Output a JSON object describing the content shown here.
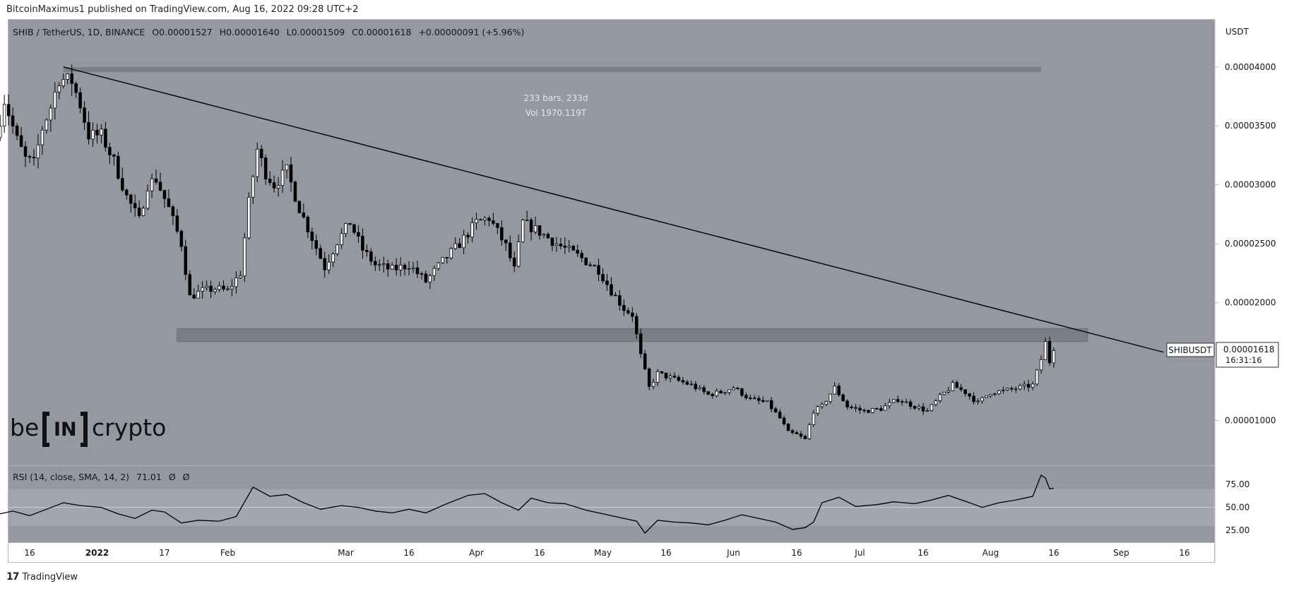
{
  "header": {
    "published_by": "BitcoinMaximus1 published on TradingView.com, Aug 16, 2022 09:28 UTC+2"
  },
  "legend": {
    "symbol": "SHIB / TetherUS, 1D, BINANCE",
    "o_label": "O",
    "o_value": "0.00001527",
    "h_label": "H",
    "h_value": "0.00001640",
    "l_label": "L",
    "l_value": "0.00001509",
    "c_label": "C",
    "c_value": "0.00001618",
    "change": "+0.00000091 (+5.96%)"
  },
  "range_tool": {
    "bars": "233 bars, 233d",
    "vol": "Vol 1970.119T"
  },
  "price_axis": {
    "unit": "USDT",
    "ticks": [
      "0.00004000",
      "0.00003500",
      "0.00003000",
      "0.00002500",
      "0.00002000",
      "0.00001000"
    ]
  },
  "last_price": {
    "symbol": "SHIBUSDT",
    "price": "0.00001618",
    "countdown": "16:31:16"
  },
  "rsi": {
    "label": "RSI (14, close, SMA, 14, 2)",
    "value": "71.01",
    "extra1": "Ø",
    "extra2": "Ø",
    "ticks": [
      "75.00",
      "50.00",
      "25.00"
    ]
  },
  "time_axis": [
    "16",
    "2022",
    "17",
    "Feb",
    "Mar",
    "16",
    "Apr",
    "16",
    "May",
    "16",
    "Jun",
    "16",
    "Jul",
    "16",
    "Aug",
    "16",
    "Sep",
    "16"
  ],
  "watermark": {
    "left": "be",
    "mid": "IN",
    "right": "crypto"
  },
  "footer": {
    "brand": "TradingView",
    "logo": "17"
  },
  "colors": {
    "pane_bg": "#9598a1",
    "rsi_band": "#a3a6ae",
    "zone": "#7b7e87",
    "candle_up": "#ffffff",
    "candle_down": "#000000",
    "line": "#000000"
  },
  "chart_data": {
    "type": "candlestick",
    "x_unit": "date",
    "y_unit": "USDT",
    "ylim": [
      6.2e-06,
      4.4e-05
    ],
    "path": [
      [
        "2021-12-08",
        3.4e-05
      ],
      [
        "2021-12-10",
        3.72e-05
      ],
      [
        "2021-12-13",
        3.38e-05
      ],
      [
        "2021-12-15",
        3.22e-05
      ],
      [
        "2021-12-17",
        3.18e-05
      ],
      [
        "2021-12-19",
        3.48e-05
      ],
      [
        "2021-12-21",
        3.66e-05
      ],
      [
        "2021-12-23",
        3.9e-05
      ],
      [
        "2021-12-26",
        3.88e-05
      ],
      [
        "2021-12-28",
        3.68e-05
      ],
      [
        "2021-12-30",
        3.42e-05
      ],
      [
        "2022-01-02",
        3.42e-05
      ],
      [
        "2022-01-05",
        3.2e-05
      ],
      [
        "2022-01-08",
        2.9e-05
      ],
      [
        "2022-01-11",
        2.7e-05
      ],
      [
        "2022-01-13",
        3e-05
      ],
      [
        "2022-01-15",
        3.05e-05
      ],
      [
        "2022-01-18",
        2.8e-05
      ],
      [
        "2022-01-21",
        2.5e-05
      ],
      [
        "2022-01-23",
        2.05e-05
      ],
      [
        "2022-01-26",
        2.1e-05
      ],
      [
        "2022-01-29",
        2.12e-05
      ],
      [
        "2022-02-01",
        2.1e-05
      ],
      [
        "2022-02-04",
        2.25e-05
      ],
      [
        "2022-02-06",
        2.85e-05
      ],
      [
        "2022-02-08",
        3.3e-05
      ],
      [
        "2022-02-10",
        3.1e-05
      ],
      [
        "2022-02-12",
        3e-05
      ],
      [
        "2022-02-15",
        3.12e-05
      ],
      [
        "2022-02-18",
        2.8e-05
      ],
      [
        "2022-02-21",
        2.55e-05
      ],
      [
        "2022-02-24",
        2.3e-05
      ],
      [
        "2022-02-27",
        2.52e-05
      ],
      [
        "2022-03-02",
        2.68e-05
      ],
      [
        "2022-03-05",
        2.45e-05
      ],
      [
        "2022-03-08",
        2.32e-05
      ],
      [
        "2022-03-12",
        2.28e-05
      ],
      [
        "2022-03-16",
        2.32e-05
      ],
      [
        "2022-03-20",
        2.18e-05
      ],
      [
        "2022-03-24",
        2.35e-05
      ],
      [
        "2022-03-28",
        2.5e-05
      ],
      [
        "2022-04-01",
        2.68e-05
      ],
      [
        "2022-04-04",
        2.72e-05
      ],
      [
        "2022-04-08",
        2.48e-05
      ],
      [
        "2022-04-10",
        2.28e-05
      ],
      [
        "2022-04-12",
        2.68e-05
      ],
      [
        "2022-04-16",
        2.6e-05
      ],
      [
        "2022-04-20",
        2.5e-05
      ],
      [
        "2022-04-25",
        2.4e-05
      ],
      [
        "2022-04-30",
        2.28e-05
      ],
      [
        "2022-05-03",
        2.1e-05
      ],
      [
        "2022-05-06",
        1.95e-05
      ],
      [
        "2022-05-08",
        1.9e-05
      ],
      [
        "2022-05-10",
        1.55e-05
      ],
      [
        "2022-05-12",
        1.28e-05
      ],
      [
        "2022-05-14",
        1.4e-05
      ],
      [
        "2022-05-18",
        1.35e-05
      ],
      [
        "2022-05-22",
        1.3e-05
      ],
      [
        "2022-05-26",
        1.22e-05
      ],
      [
        "2022-05-29",
        1.24e-05
      ],
      [
        "2022-06-01",
        1.28e-05
      ],
      [
        "2022-06-05",
        1.18e-05
      ],
      [
        "2022-06-09",
        1.15e-05
      ],
      [
        "2022-06-12",
        1.02e-05
      ],
      [
        "2022-06-14",
        9e-06
      ],
      [
        "2022-06-16",
        8.8e-06
      ],
      [
        "2022-06-18",
        8.4e-06
      ],
      [
        "2022-06-20",
        1.08e-05
      ],
      [
        "2022-06-22",
        1.12e-05
      ],
      [
        "2022-06-25",
        1.28e-05
      ],
      [
        "2022-06-28",
        1.12e-05
      ],
      [
        "2022-07-02",
        1.08e-05
      ],
      [
        "2022-07-06",
        1.1e-05
      ],
      [
        "2022-07-10",
        1.18e-05
      ],
      [
        "2022-07-14",
        1.12e-05
      ],
      [
        "2022-07-17",
        1.08e-05
      ],
      [
        "2022-07-20",
        1.2e-05
      ],
      [
        "2022-07-23",
        1.3e-05
      ],
      [
        "2022-07-26",
        1.24e-05
      ],
      [
        "2022-07-29",
        1.15e-05
      ],
      [
        "2022-08-01",
        1.24e-05
      ],
      [
        "2022-08-04",
        1.25e-05
      ],
      [
        "2022-08-08",
        1.28e-05
      ],
      [
        "2022-08-11",
        1.3e-05
      ],
      [
        "2022-08-13",
        1.52e-05
      ],
      [
        "2022-08-14",
        1.66e-05
      ],
      [
        "2022-08-15",
        1.5e-05
      ],
      [
        "2022-08-16",
        1.62e-05
      ]
    ],
    "annotations": {
      "descending_trendline": [
        [
          "2021-12-24",
          4e-05
        ],
        [
          "2022-09-11",
          1.58e-05
        ]
      ],
      "resistance_zone": {
        "from": "2022-01-20",
        "to": "2022-08-24",
        "low": 1.67e-05,
        "high": 1.78e-05
      },
      "top_range_bar": {
        "from": "2021-12-24",
        "to": "2022-08-13",
        "price": 3.98e-05
      }
    }
  },
  "rsi_data": {
    "ylim": [
      12,
      95
    ],
    "band": [
      30,
      70
    ],
    "path": [
      [
        "2021-12-08",
        42
      ],
      [
        "2021-12-12",
        46
      ],
      [
        "2021-12-16",
        41
      ],
      [
        "2021-12-20",
        48
      ],
      [
        "2021-12-24",
        55
      ],
      [
        "2021-12-28",
        52
      ],
      [
        "2022-01-02",
        50
      ],
      [
        "2022-01-06",
        43
      ],
      [
        "2022-01-10",
        38
      ],
      [
        "2022-01-14",
        47
      ],
      [
        "2022-01-17",
        45
      ],
      [
        "2022-01-21",
        33
      ],
      [
        "2022-01-25",
        36
      ],
      [
        "2022-01-30",
        35
      ],
      [
        "2022-02-03",
        40
      ],
      [
        "2022-02-07",
        72
      ],
      [
        "2022-02-11",
        62
      ],
      [
        "2022-02-15",
        64
      ],
      [
        "2022-02-19",
        55
      ],
      [
        "2022-02-23",
        48
      ],
      [
        "2022-02-28",
        52
      ],
      [
        "2022-03-04",
        50
      ],
      [
        "2022-03-08",
        46
      ],
      [
        "2022-03-12",
        44
      ],
      [
        "2022-03-16",
        48
      ],
      [
        "2022-03-20",
        44
      ],
      [
        "2022-03-25",
        54
      ],
      [
        "2022-03-30",
        63
      ],
      [
        "2022-04-03",
        65
      ],
      [
        "2022-04-07",
        55
      ],
      [
        "2022-04-11",
        47
      ],
      [
        "2022-04-14",
        60
      ],
      [
        "2022-04-18",
        55
      ],
      [
        "2022-04-22",
        54
      ],
      [
        "2022-04-27",
        47
      ],
      [
        "2022-05-02",
        42
      ],
      [
        "2022-05-06",
        38
      ],
      [
        "2022-05-09",
        35
      ],
      [
        "2022-05-11",
        22
      ],
      [
        "2022-05-14",
        36
      ],
      [
        "2022-05-18",
        34
      ],
      [
        "2022-05-22",
        33
      ],
      [
        "2022-05-26",
        31
      ],
      [
        "2022-05-30",
        36
      ],
      [
        "2022-06-03",
        42
      ],
      [
        "2022-06-07",
        38
      ],
      [
        "2022-06-11",
        34
      ],
      [
        "2022-06-15",
        26
      ],
      [
        "2022-06-18",
        28
      ],
      [
        "2022-06-20",
        34
      ],
      [
        "2022-06-22",
        55
      ],
      [
        "2022-06-26",
        61
      ],
      [
        "2022-06-30",
        51
      ],
      [
        "2022-07-05",
        53
      ],
      [
        "2022-07-09",
        56
      ],
      [
        "2022-07-14",
        54
      ],
      [
        "2022-07-18",
        58
      ],
      [
        "2022-07-22",
        63
      ],
      [
        "2022-07-27",
        55
      ],
      [
        "2022-07-30",
        50
      ],
      [
        "2022-08-03",
        55
      ],
      [
        "2022-08-07",
        58
      ],
      [
        "2022-08-11",
        62
      ],
      [
        "2022-08-13",
        85
      ],
      [
        "2022-08-14",
        82
      ],
      [
        "2022-08-15",
        70
      ],
      [
        "2022-08-16",
        71
      ]
    ]
  }
}
